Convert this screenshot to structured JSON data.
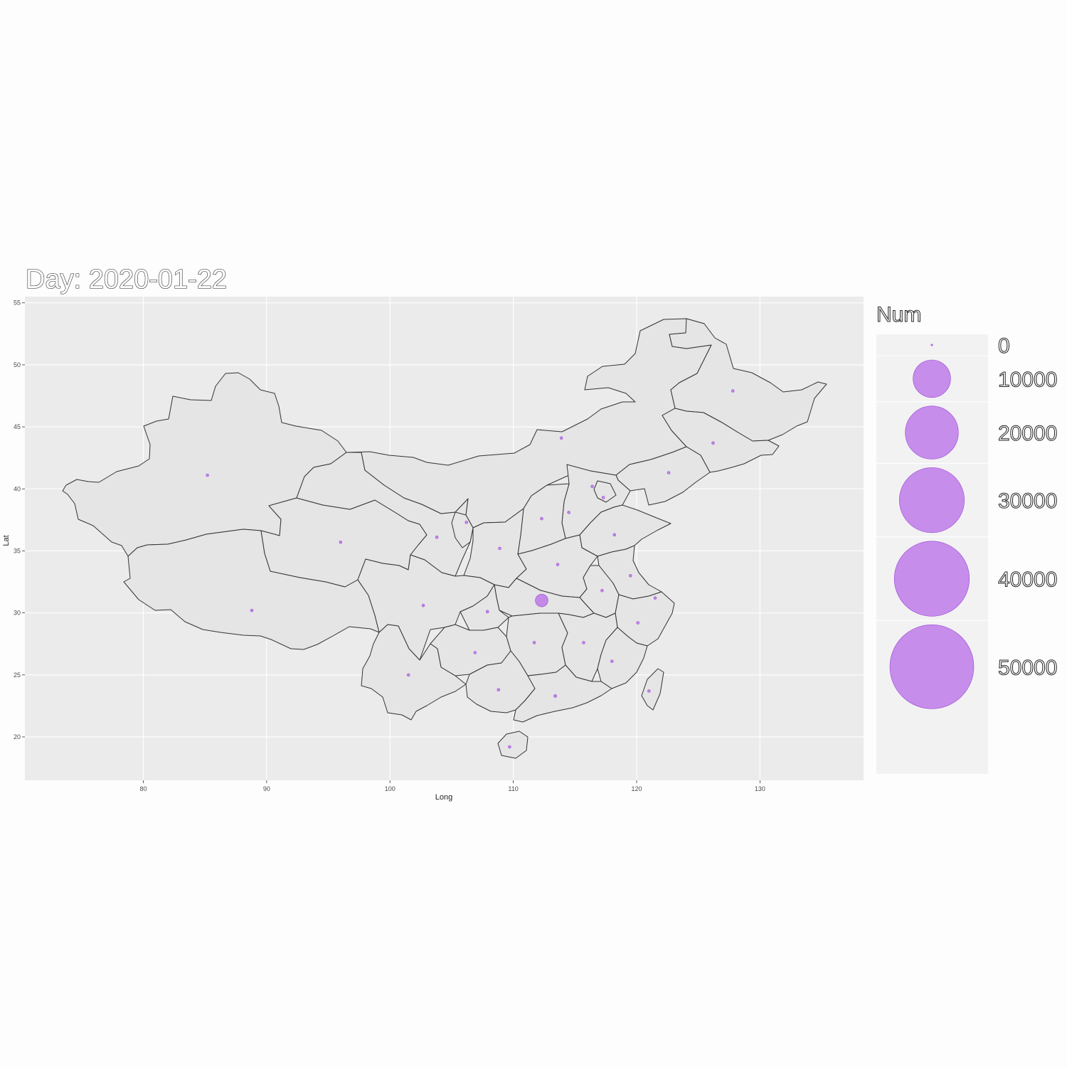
{
  "chart_data": {
    "type": "scatter",
    "title": "Day: 2020-01-22",
    "xlabel": "Long",
    "ylabel": "Lat",
    "xlim": [
      70.4,
      138.4
    ],
    "ylim": [
      16.5,
      55.5
    ],
    "x_ticks": [
      80,
      90,
      100,
      110,
      120,
      130
    ],
    "y_ticks": [
      20,
      25,
      30,
      35,
      40,
      45,
      50,
      55
    ],
    "grid": true,
    "legend": {
      "title": "Num",
      "position": "right",
      "values": [
        0,
        10000,
        20000,
        30000,
        40000,
        50000
      ],
      "labels": [
        "0",
        "10000",
        "20000",
        "30000",
        "40000",
        "50000"
      ]
    },
    "point_color": "#b462e8",
    "panel_color": "#ebebeb",
    "points": [
      {
        "lon": 85.2,
        "lat": 41.1,
        "num": 0
      },
      {
        "lon": 88.8,
        "lat": 30.2,
        "num": 0
      },
      {
        "lon": 96.0,
        "lat": 35.7,
        "num": 0
      },
      {
        "lon": 103.8,
        "lat": 36.1,
        "num": 0
      },
      {
        "lon": 106.2,
        "lat": 37.3,
        "num": 1
      },
      {
        "lon": 108.9,
        "lat": 35.2,
        "num": 0
      },
      {
        "lon": 113.9,
        "lat": 44.1,
        "num": 0
      },
      {
        "lon": 112.3,
        "lat": 37.6,
        "num": 1
      },
      {
        "lon": 114.5,
        "lat": 38.1,
        "num": 1
      },
      {
        "lon": 116.4,
        "lat": 40.2,
        "num": 14
      },
      {
        "lon": 117.3,
        "lat": 39.3,
        "num": 4
      },
      {
        "lon": 118.2,
        "lat": 36.3,
        "num": 2
      },
      {
        "lon": 113.6,
        "lat": 33.9,
        "num": 5
      },
      {
        "lon": 117.2,
        "lat": 31.8,
        "num": 1
      },
      {
        "lon": 119.5,
        "lat": 33.0,
        "num": 1
      },
      {
        "lon": 121.5,
        "lat": 31.2,
        "num": 9
      },
      {
        "lon": 120.1,
        "lat": 29.2,
        "num": 10
      },
      {
        "lon": 112.3,
        "lat": 31.0,
        "num": 444
      },
      {
        "lon": 102.7,
        "lat": 30.6,
        "num": 5
      },
      {
        "lon": 107.9,
        "lat": 30.1,
        "num": 5
      },
      {
        "lon": 106.9,
        "lat": 26.8,
        "num": 1
      },
      {
        "lon": 101.5,
        "lat": 25.0,
        "num": 1
      },
      {
        "lon": 111.7,
        "lat": 27.6,
        "num": 4
      },
      {
        "lon": 115.7,
        "lat": 27.6,
        "num": 2
      },
      {
        "lon": 118.0,
        "lat": 26.1,
        "num": 1
      },
      {
        "lon": 108.8,
        "lat": 23.8,
        "num": 2
      },
      {
        "lon": 113.4,
        "lat": 23.3,
        "num": 26
      },
      {
        "lon": 109.7,
        "lat": 19.2,
        "num": 4
      },
      {
        "lon": 121.0,
        "lat": 23.7,
        "num": 1
      },
      {
        "lon": 127.8,
        "lat": 47.9,
        "num": 0
      },
      {
        "lon": 126.2,
        "lat": 43.7,
        "num": 0
      },
      {
        "lon": 122.6,
        "lat": 41.3,
        "num": 2
      }
    ]
  }
}
